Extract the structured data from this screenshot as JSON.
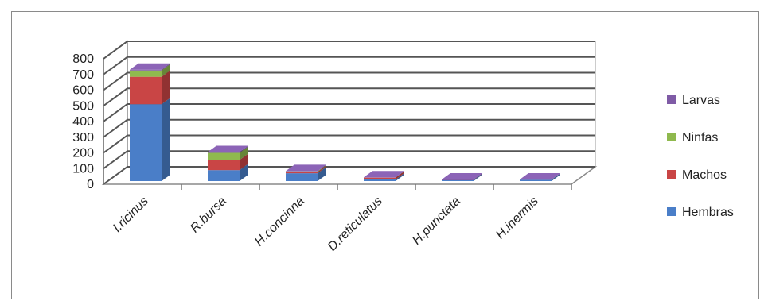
{
  "chart_data": {
    "type": "bar",
    "stacked": true,
    "three_d": true,
    "categories": [
      "I.ricinus",
      "R.bursa",
      "H.concinna",
      "D.reticulatus",
      "H.punctata",
      "H.inermis"
    ],
    "series": [
      {
        "name": "Hembras",
        "color": "#4a7ec8",
        "values": [
          490,
          70,
          50,
          10,
          5,
          8
        ]
      },
      {
        "name": "Machos",
        "color": "#c94545",
        "values": [
          175,
          65,
          8,
          12,
          0,
          0
        ]
      },
      {
        "name": "Ninfas",
        "color": "#8fb94e",
        "values": [
          40,
          45,
          4,
          0,
          0,
          0
        ]
      },
      {
        "name": "Larvas",
        "color": "#7f5ba6",
        "values": [
          5,
          5,
          2,
          2,
          5,
          2
        ]
      }
    ],
    "y_ticks": [
      "0",
      "100",
      "200",
      "300",
      "400",
      "500",
      "600",
      "700",
      "800"
    ],
    "ylim": [
      0,
      800
    ],
    "grid": true,
    "legend_position": "right",
    "legend_order": [
      "Larvas",
      "Ninfas",
      "Machos",
      "Hembras"
    ]
  }
}
